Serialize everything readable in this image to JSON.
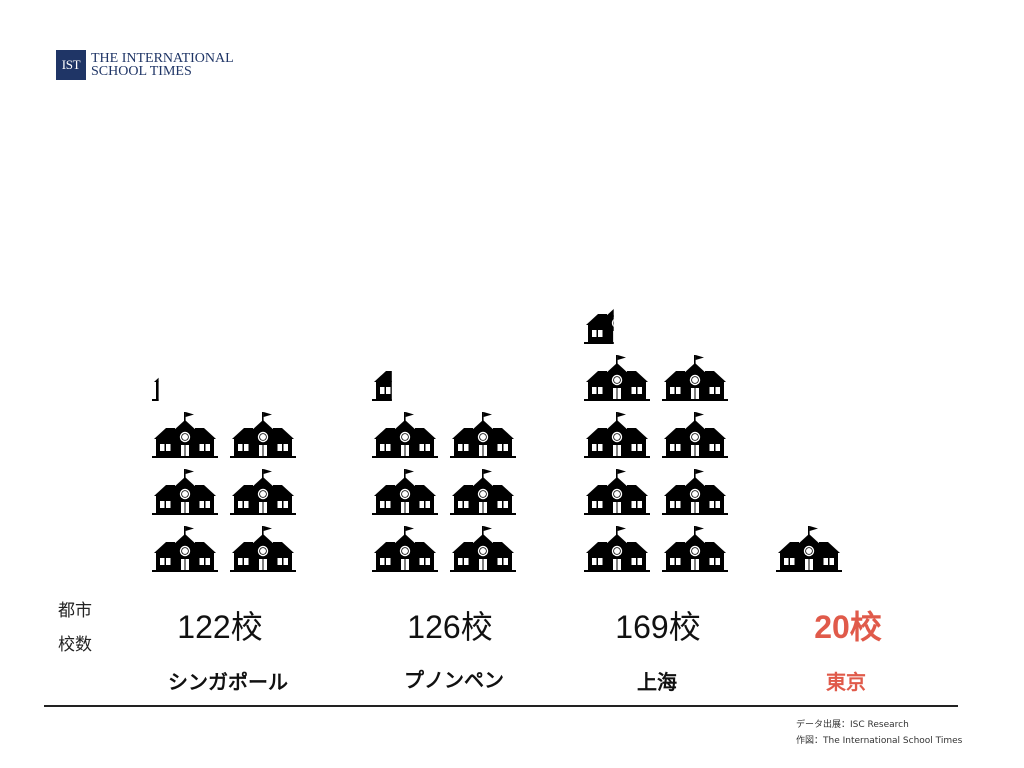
{
  "logo": {
    "mark": "IST",
    "text": "THE INTERNATIONAL\nSCHOOL TIMES",
    "color": "#1f3566"
  },
  "row_labels": {
    "city": "都市",
    "count": "校数"
  },
  "colors": {
    "highlight": "#e05a4a",
    "default": "#4a9bd8",
    "text": "#111111"
  },
  "chart_data": {
    "type": "bar",
    "style": "pictograph",
    "icon": "school-building-icon",
    "categories": [
      "シンガポール",
      "プノンペン",
      "上海",
      "東京"
    ],
    "values": [
      122,
      126,
      169,
      20
    ],
    "value_labels": [
      "122校",
      "126校",
      "169校",
      "20校"
    ],
    "unit": "校",
    "highlight_category": "東京",
    "title": "",
    "xlabel": "",
    "ylabel": ""
  },
  "source": {
    "data": "データ出展：ISC Research",
    "author": "作図：The International School Times"
  }
}
